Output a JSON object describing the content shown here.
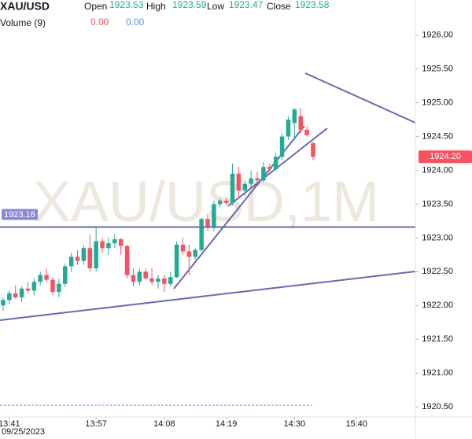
{
  "chart_data": {
    "type": "candlestick",
    "legend": {
      "symbol": "XAU/USD",
      "fields": [
        {
          "label": "Open",
          "value": 1923.53
        },
        {
          "label": "High",
          "value": 1923.59
        },
        {
          "label": "Low",
          "value": 1923.47
        },
        {
          "label": "Close",
          "value": 1923.58
        }
      ],
      "volume_label": "Volume (9)",
      "volume_values": [
        "0.00",
        "0.00"
      ]
    },
    "watermark": "XAU/USD,1M",
    "date_label": "09/25/2023",
    "categories": [
      null,
      "13:41",
      null,
      null,
      null,
      null,
      null,
      null,
      null,
      null,
      null,
      null,
      null,
      null,
      null,
      "13:57",
      null,
      null,
      null,
      null,
      null,
      null,
      null,
      null,
      null,
      null,
      "14:08",
      null,
      null,
      null,
      null,
      null,
      null,
      null,
      null,
      null,
      "14:19",
      null,
      null,
      null,
      null,
      null,
      null,
      null,
      null,
      null,
      null,
      "14:30",
      null,
      null,
      null,
      null,
      null,
      null,
      null,
      null,
      null,
      "15:40",
      null,
      null,
      null,
      null,
      null,
      null,
      null,
      null,
      null
    ],
    "open": [
      1922.0,
      1922.08,
      1922.18,
      1922.12,
      1922.25,
      1922.22,
      1922.35,
      1922.45,
      1922.38,
      1922.2,
      1922.32,
      1922.58,
      1922.72,
      1922.66,
      1922.85,
      1922.55,
      1922.95,
      1922.85,
      1922.92,
      1922.98,
      1922.88,
      1922.45,
      1922.35,
      1922.5,
      1922.4,
      1922.35,
      1922.4,
      1922.32,
      1922.42,
      1922.9,
      1922.8,
      1922.72,
      1922.82,
      1923.28,
      1923.15,
      1923.5,
      1923.55,
      1923.52,
      1923.95,
      1923.7,
      1923.8,
      1923.88,
      1923.85,
      1924.05,
      1924.02,
      1924.2,
      1924.5,
      1924.7,
      1924.8,
      1924.6,
      1924.4,
      null,
      null,
      null,
      null,
      null,
      null,
      null,
      null,
      null,
      null,
      null,
      null,
      null,
      null,
      null,
      null
    ],
    "high": [
      1922.12,
      1922.22,
      1922.3,
      1922.28,
      1922.35,
      1922.4,
      1922.5,
      1922.55,
      1922.42,
      1922.4,
      1922.62,
      1922.78,
      1922.82,
      1922.9,
      1923.05,
      1923.16,
      1923.0,
      1923.0,
      1923.05,
      1923.0,
      1922.9,
      1922.55,
      1922.55,
      1922.55,
      1922.55,
      1922.45,
      1922.45,
      1922.5,
      1922.95,
      1923.0,
      1922.9,
      1922.85,
      1923.3,
      1923.35,
      1923.55,
      1923.58,
      1923.6,
      1924.1,
      1924.05,
      1923.85,
      1924.0,
      1923.98,
      1924.12,
      1924.1,
      1924.25,
      1924.55,
      1924.8,
      1924.92,
      1924.92,
      1924.65,
      1924.42,
      null,
      null,
      null,
      null,
      null,
      null,
      null,
      null,
      null,
      null,
      null,
      null,
      null,
      null,
      null,
      null
    ],
    "low": [
      1921.92,
      1922.02,
      1922.1,
      1922.05,
      1922.18,
      1922.15,
      1922.3,
      1922.35,
      1922.15,
      1922.12,
      1922.28,
      1922.5,
      1922.6,
      1922.6,
      1922.5,
      1922.5,
      1922.78,
      1922.75,
      1922.85,
      1922.75,
      1922.4,
      1922.28,
      1922.3,
      1922.38,
      1922.3,
      1922.25,
      1922.2,
      1922.28,
      1922.4,
      1922.75,
      1922.45,
      1922.68,
      1922.8,
      1923.1,
      1923.1,
      1923.45,
      1923.48,
      1923.48,
      1923.6,
      1923.62,
      1923.75,
      1923.8,
      1923.82,
      1923.98,
      1924.0,
      1924.15,
      1924.45,
      1924.48,
      1924.55,
      1924.5,
      1924.15,
      null,
      null,
      null,
      null,
      null,
      null,
      null,
      null,
      null,
      null,
      null,
      null,
      null,
      null,
      null,
      null
    ],
    "close": [
      1922.08,
      1922.18,
      1922.12,
      1922.25,
      1922.22,
      1922.35,
      1922.45,
      1922.38,
      1922.2,
      1922.32,
      1922.58,
      1922.72,
      1922.66,
      1922.85,
      1922.55,
      1922.95,
      1922.85,
      1922.92,
      1922.98,
      1922.88,
      1922.45,
      1922.35,
      1922.5,
      1922.4,
      1922.35,
      1922.4,
      1922.32,
      1922.42,
      1922.9,
      1922.8,
      1922.72,
      1922.82,
      1923.28,
      1923.15,
      1923.5,
      1923.55,
      1923.52,
      1923.95,
      1923.7,
      1923.8,
      1923.88,
      1923.85,
      1924.05,
      1924.02,
      1924.2,
      1924.5,
      1924.75,
      1924.9,
      1924.6,
      1924.52,
      1924.2,
      null,
      null,
      null,
      null,
      null,
      null,
      null,
      null,
      null,
      null,
      null,
      null,
      null,
      null,
      null,
      null
    ],
    "up_color": "#22ab94",
    "down_color": "#f7525f",
    "ylim": [
      1920.35,
      1926.52
    ],
    "yticks": [
      {
        "value": 1920.5,
        "label": "1920.50"
      },
      {
        "value": 1921,
        "label": "1921.00"
      },
      {
        "value": 1921.5,
        "label": "1921.50"
      },
      {
        "value": 1922,
        "label": "1922.00"
      },
      {
        "value": 1922.5,
        "label": "1922.50"
      },
      {
        "value": 1923,
        "label": "1923.00"
      },
      {
        "value": 1923.5,
        "label": "1923.50"
      },
      {
        "value": 1924,
        "label": "1924.00"
      },
      {
        "value": 1924.5,
        "label": "1924.50"
      },
      {
        "value": 1925,
        "label": "1925.00"
      },
      {
        "value": 1925.5,
        "label": "1925.50"
      },
      {
        "value": 1926,
        "label": "1926.00"
      }
    ],
    "horizontal_line": {
      "value": 1923.16,
      "label": "1923.16"
    },
    "last_price": {
      "value": 1924.2,
      "label": "1924.20"
    }
  }
}
